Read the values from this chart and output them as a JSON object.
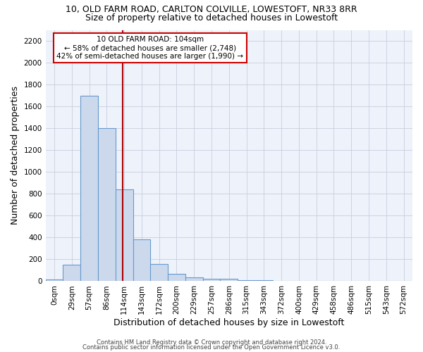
{
  "title1": "10, OLD FARM ROAD, CARLTON COLVILLE, LOWESTOFT, NR33 8RR",
  "title2": "Size of property relative to detached houses in Lowestoft",
  "xlabel": "Distribution of detached houses by size in Lowestoft",
  "ylabel": "Number of detached properties",
  "bar_values": [
    15,
    150,
    1700,
    1400,
    840,
    380,
    160,
    65,
    35,
    25,
    20,
    10,
    10,
    0,
    0,
    0,
    0,
    0,
    0,
    0,
    0
  ],
  "bar_labels": [
    "0sqm",
    "29sqm",
    "57sqm",
    "86sqm",
    "114sqm",
    "143sqm",
    "172sqm",
    "200sqm",
    "229sqm",
    "257sqm",
    "286sqm",
    "315sqm",
    "343sqm",
    "372sqm",
    "400sqm",
    "429sqm",
    "458sqm",
    "486sqm",
    "515sqm",
    "543sqm",
    "572sqm"
  ],
  "bar_color": "#ccd9ed",
  "bar_edge_color": "#6699cc",
  "ylim": [
    0,
    2300
  ],
  "yticks": [
    0,
    200,
    400,
    600,
    800,
    1000,
    1200,
    1400,
    1600,
    1800,
    2000,
    2200
  ],
  "vline_x": 3.92,
  "vline_color": "#aa0000",
  "annotation_text": "10 OLD FARM ROAD: 104sqm\n← 58% of detached houses are smaller (2,748)\n42% of semi-detached houses are larger (1,990) →",
  "annotation_box_color": "#ffffff",
  "annotation_box_edge": "#cc0000",
  "footer1": "Contains HM Land Registry data © Crown copyright and database right 2024.",
  "footer2": "Contains public sector information licensed under the Open Government Licence v3.0.",
  "bg_color": "#eef2fa",
  "grid_color": "#c8cedd",
  "title1_fontsize": 9,
  "title2_fontsize": 9,
  "tick_fontsize": 7.5,
  "label_fontsize": 9,
  "footer_fontsize": 6,
  "annot_fontsize": 7.5
}
